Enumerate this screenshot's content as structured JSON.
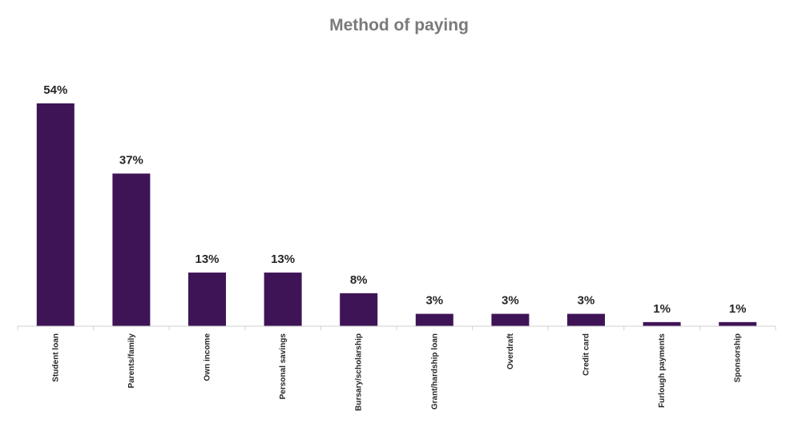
{
  "chart_data": {
    "type": "bar",
    "title": "Method of paying",
    "xlabel": "",
    "ylabel": "",
    "categories": [
      "Student loan",
      "Parents/family",
      "Own income",
      "Personal savings",
      "Bursary/scholarship",
      "Grant/hardship loan",
      "Overdraft",
      "Credit card",
      "Furlough payments",
      "Sponsorship"
    ],
    "values": [
      54,
      37,
      13,
      13,
      8,
      3,
      3,
      3,
      1,
      1
    ],
    "data_labels": [
      "54%",
      "37%",
      "13%",
      "13%",
      "8%",
      "3%",
      "3%",
      "3%",
      "1%",
      "1%"
    ],
    "value_unit": "%",
    "ylim": [
      0,
      60
    ],
    "grid": false,
    "legend": "none",
    "bar_color": "#3f1456"
  }
}
